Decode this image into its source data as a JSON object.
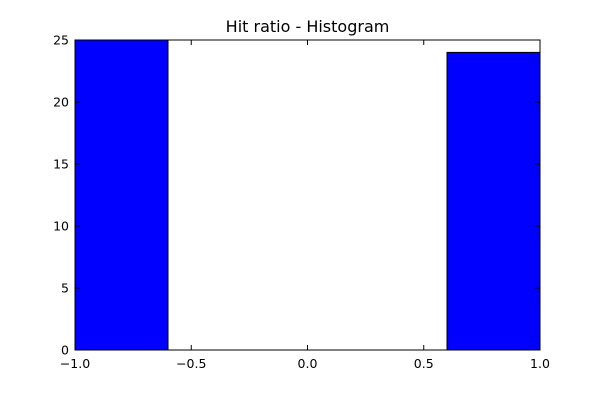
{
  "chart_data": {
    "type": "bar",
    "title": "Hit ratio - Histogram",
    "xlabel": "",
    "ylabel": "",
    "xlim": [
      -1.0,
      1.0
    ],
    "ylim": [
      0,
      25
    ],
    "grid": false,
    "bar_color": "#0000ff",
    "bins": [
      {
        "x0": -1.0,
        "x1": -0.6,
        "count": 25
      },
      {
        "x0": -0.6,
        "x1": -0.2,
        "count": 0
      },
      {
        "x0": -0.2,
        "x1": 0.2,
        "count": 0
      },
      {
        "x0": 0.2,
        "x1": 0.6,
        "count": 0
      },
      {
        "x0": 0.6,
        "x1": 1.0,
        "count": 24
      }
    ],
    "x_ticks": [
      {
        "value": -1.0,
        "label": "−1.0"
      },
      {
        "value": -0.5,
        "label": "−0.5"
      },
      {
        "value": 0.0,
        "label": "0.0"
      },
      {
        "value": 0.5,
        "label": "0.5"
      },
      {
        "value": 1.0,
        "label": "1.0"
      }
    ],
    "y_ticks": [
      {
        "value": 0,
        "label": "0"
      },
      {
        "value": 5,
        "label": "5"
      },
      {
        "value": 10,
        "label": "10"
      },
      {
        "value": 15,
        "label": "15"
      },
      {
        "value": 20,
        "label": "20"
      },
      {
        "value": 25,
        "label": "25"
      }
    ]
  }
}
